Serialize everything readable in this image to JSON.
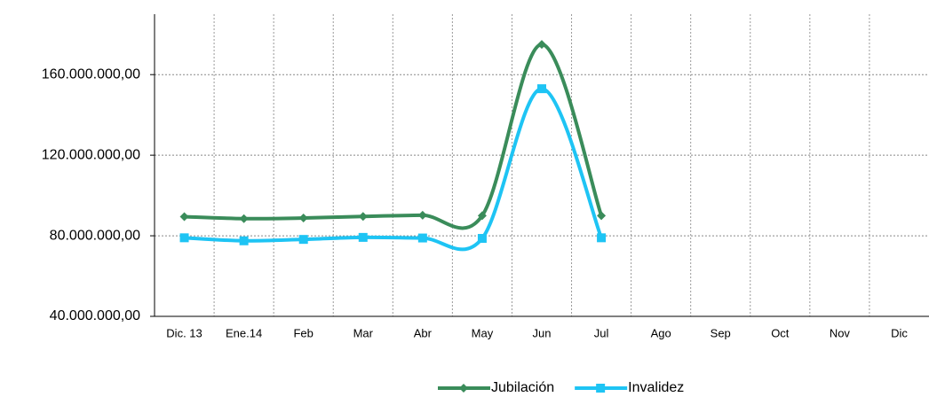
{
  "chart_data": {
    "type": "line",
    "categories": [
      "Dic. 13",
      "Ene.14",
      "Feb",
      "Mar",
      "Abr",
      "May",
      "Jun",
      "Jul",
      "Ago",
      "Sep",
      "Oct",
      "Nov",
      "Dic"
    ],
    "series": [
      {
        "name": "Jubilación",
        "color": "#3a8c5a",
        "marker": "diamond",
        "values": [
          89500000,
          88500000,
          88800000,
          89600000,
          90200000,
          90000000,
          175000000,
          90000000,
          null,
          null,
          null,
          null,
          null
        ]
      },
      {
        "name": "Invalidez",
        "color": "#1ec4f4",
        "marker": "square",
        "values": [
          79000000,
          77500000,
          78200000,
          79200000,
          78900000,
          78700000,
          153000000,
          79000000,
          null,
          null,
          null,
          null,
          null
        ]
      }
    ],
    "ylim": [
      40000000,
      190000000
    ],
    "yticks": [
      {
        "value": 40000000,
        "label": "40.000.000,00"
      },
      {
        "value": 80000000,
        "label": "80.000.000,00"
      },
      {
        "value": 120000000,
        "label": "120.000.000,00"
      },
      {
        "value": 160000000,
        "label": "160.000.000,00"
      }
    ],
    "grid": true,
    "smooth": true,
    "legend": "bottom"
  }
}
